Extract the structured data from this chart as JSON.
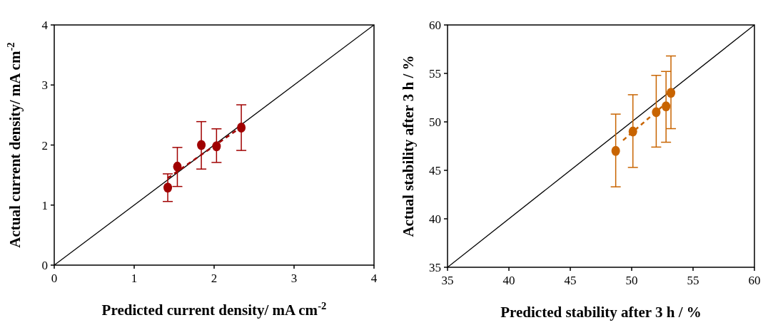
{
  "chart_data": [
    {
      "type": "scatter",
      "xlabel": "Predicted current density/ mA cm$^{-2}$",
      "ylabel": "Actual current density/ mA cm$^{-2}$",
      "xlim": [
        0,
        4
      ],
      "ylim": [
        0,
        4
      ],
      "xticks": [
        0,
        1,
        2,
        3,
        4
      ],
      "yticks": [
        0,
        1,
        2,
        3,
        4
      ],
      "grid": false,
      "marker": "circle",
      "series": [
        {
          "type": "line",
          "color": "#000000",
          "x": [
            0,
            4
          ],
          "values": [
            0,
            4
          ],
          "marker": "none",
          "line_style": "solid"
        },
        {
          "type": "line",
          "color": "#a00000",
          "x": [
            1.42,
            2.34
          ],
          "values": [
            1.45,
            2.3
          ],
          "marker": "none",
          "line_style": "dashed"
        },
        {
          "color": "#a00000",
          "x": [
            1.42,
            1.54,
            1.84,
            2.03,
            2.34
          ],
          "values": [
            1.29,
            1.64,
            2.0,
            1.98,
            2.29
          ],
          "errors": [
            [
              1.06,
              1.52
            ],
            [
              1.31,
              1.96
            ],
            [
              1.6,
              2.39
            ],
            [
              1.71,
              2.27
            ],
            [
              1.91,
              2.67
            ]
          ]
        }
      ]
    },
    {
      "type": "scatter",
      "xlabel": "Predicted stability after 3 h / %",
      "ylabel": "Actual stability after 3 h / %",
      "xlim": [
        35,
        60
      ],
      "ylim": [
        35,
        60
      ],
      "xticks": [
        35,
        40,
        45,
        50,
        55,
        60
      ],
      "yticks": [
        35,
        40,
        45,
        50,
        55,
        60
      ],
      "grid": false,
      "marker": "circle",
      "series": [
        {
          "type": "line",
          "color": "#000000",
          "x": [
            35,
            60
          ],
          "values": [
            35,
            60
          ],
          "marker": "none",
          "line_style": "solid"
        },
        {
          "type": "line",
          "color": "#c86400",
          "x": [
            49.3,
            52.5
          ],
          "values": [
            48.1,
            51.6
          ],
          "marker": "none",
          "line_style": "dashed"
        },
        {
          "color": "#c86400",
          "x": [
            48.7,
            50.1,
            52.0,
            52.8,
            53.2
          ],
          "values": [
            47.0,
            49.0,
            51.0,
            51.6,
            53.0
          ],
          "errors": [
            [
              43.3,
              50.8
            ],
            [
              45.3,
              52.8
            ],
            [
              47.4,
              54.8
            ],
            [
              47.9,
              55.2
            ],
            [
              49.3,
              56.8
            ]
          ]
        }
      ]
    }
  ]
}
